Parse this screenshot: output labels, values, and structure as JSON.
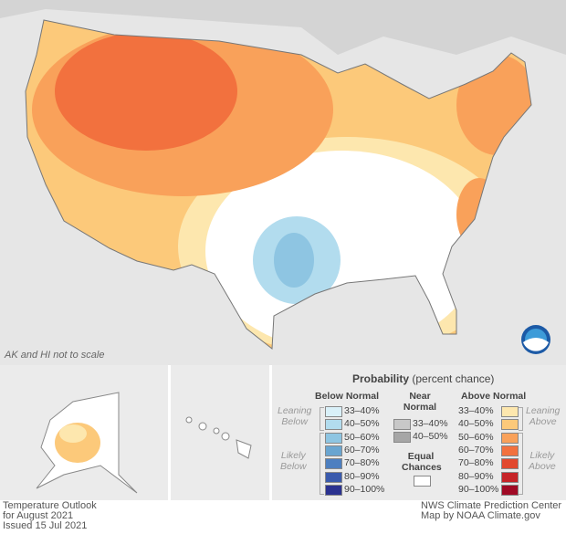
{
  "map": {
    "note": "AK and HI not to scale",
    "logo": "NOAA"
  },
  "legend": {
    "title_bold": "Probability",
    "title_rest": "(percent chance)",
    "below": {
      "header": "Below Normal",
      "leaning": [
        "Leaning",
        "Below"
      ],
      "likely": [
        "Likely",
        "Below"
      ],
      "items": [
        {
          "label": "33–40%",
          "color": "#d9f0f8"
        },
        {
          "label": "40–50%",
          "color": "#b2dcee"
        },
        {
          "label": "50–60%",
          "color": "#8ec5e2"
        },
        {
          "label": "60–70%",
          "color": "#6aa5d0"
        },
        {
          "label": "70–80%",
          "color": "#4d7fc0"
        },
        {
          "label": "80–90%",
          "color": "#3a5aad"
        },
        {
          "label": "90–100%",
          "color": "#2b3290"
        }
      ]
    },
    "near": {
      "header": [
        "Near",
        "Normal"
      ],
      "items": [
        {
          "label": "33–40%",
          "color": "#c8c8c8"
        },
        {
          "label": "40–50%",
          "color": "#a6a6a6"
        }
      ]
    },
    "equal": {
      "label": [
        "Equal",
        "Chances"
      ],
      "color": "#ffffff"
    },
    "above": {
      "header": "Above Normal",
      "leaning": [
        "Leaning",
        "Above"
      ],
      "likely": [
        "Likely",
        "Above"
      ],
      "items": [
        {
          "label": "33–40%",
          "color": "#fde7ae"
        },
        {
          "label": "40–50%",
          "color": "#fcc97a"
        },
        {
          "label": "50–60%",
          "color": "#f9a15a"
        },
        {
          "label": "60–70%",
          "color": "#f2713e"
        },
        {
          "label": "70–80%",
          "color": "#e2482e"
        },
        {
          "label": "80–90%",
          "color": "#c62428"
        },
        {
          "label": "90–100%",
          "color": "#a00a25"
        }
      ]
    }
  },
  "footer": {
    "left": [
      "Temperature Outlook",
      "for August 2021",
      "Issued 15 Jul 2021"
    ],
    "right": [
      "NWS Climate Prediction Center",
      "Map by NOAA Climate.gov"
    ]
  }
}
